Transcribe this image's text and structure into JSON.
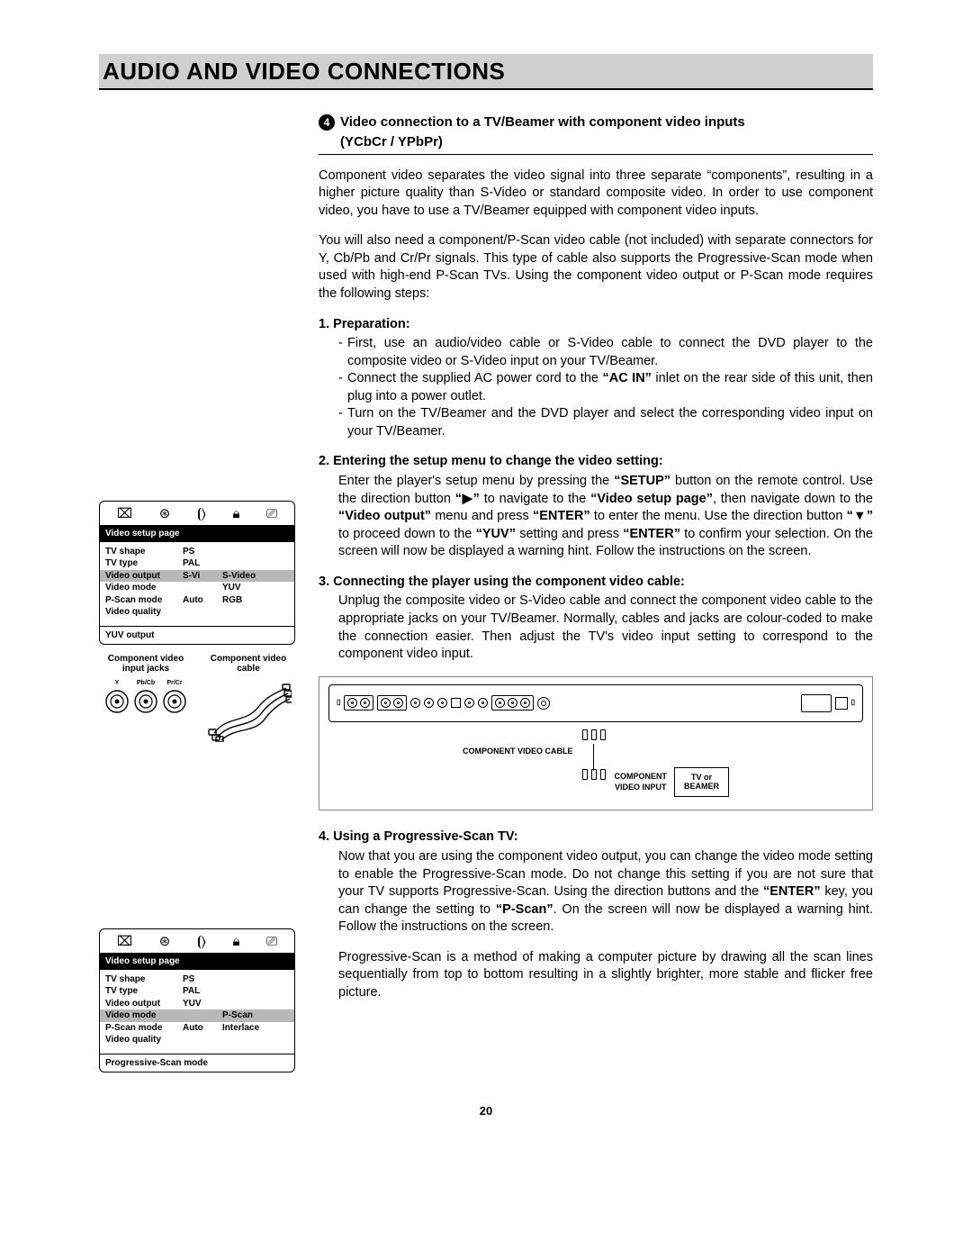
{
  "page_number": "20",
  "title": "AUDIO AND VIDEO CONNECTIONS",
  "section": {
    "number": "4",
    "heading_line1": "Video connection to a TV/Beamer with component video inputs",
    "heading_line2": "(YCbCr / YPbPr)"
  },
  "para1": "Component video separates the video signal into three separate “components”, resulting in a higher picture quality than S-Video or standard composite video. In order to use component video, you have to use a TV/Beamer equipped with component video inputs.",
  "para2": "You will also need a component/P-Scan video cable (not included) with separate connectors for Y, Cb/Pb and Cr/Pr signals. This type of cable also supports the Progressive-Scan mode when used with high-end P-Scan TVs. Using the component video output or P-Scan mode requires the following steps:",
  "step1": {
    "head": "1.  Preparation:",
    "a": "First, use an audio/video cable or S-Video cable to connect the DVD player to the composite video or S-Video input on your TV/Beamer.",
    "b_pre": "Connect the supplied AC power cord to the ",
    "b_bold": "“AC IN”",
    "b_post": " inlet on the rear side of this unit, then plug into a power outlet.",
    "c": "Turn on the TV/Beamer and the DVD player and select the corresponding video input on your TV/Beamer."
  },
  "step2": {
    "head": "2.  Entering the setup menu to change the video setting:",
    "t1": "Enter the player's setup menu by pressing the ",
    "b1": "“SETUP”",
    "t2": " button on the remote control. Use the direction button ",
    "b2": "“▶”",
    "t3": " to navigate to the ",
    "b3": "“Video setup page”",
    "t4": ", then navigate down to the ",
    "b4": "“Video output”",
    "t5": " menu and press ",
    "b5": "“ENTER”",
    "t6": " to enter the menu. Use the direction button ",
    "b6": "“▼”",
    "t7": " to proceed down to the ",
    "b7": "“YUV”",
    "t8": " setting and press ",
    "b8": "“ENTER”",
    "t9": " to confirm your selection. On the screen will now be displayed a warning hint. Follow the instructions on the screen."
  },
  "step3": {
    "head": "3.  Connecting the player using the component video cable:",
    "body": "Unplug the composite video or S-Video cable and connect the component video cable to the appropriate jacks on your TV/Beamer. Normally, cables and jacks are colour-coded to make the connection easier. Then adjust the TV's video input setting to correspond to the component video input."
  },
  "step4": {
    "head": "4.  Using a Progressive-Scan TV:",
    "t1": "Now that you are using the component video output, you can change the video mode setting to enable the Progressive-Scan mode. Do not change this setting if you are not sure that your TV supports Progressive-Scan. Using the direction buttons and the ",
    "b1": "“ENTER”",
    "t2": " key, you can change the setting to ",
    "b2": "“P-Scan”",
    "t3": ". On the screen will now be displayed a warning hint. Follow the instructions on the screen.",
    "p2": "Progressive-Scan is a method of making a computer picture by drawing all the scan lines sequentially from top to bottom resulting in a slightly brighter, more stable and flicker free picture."
  },
  "menu1": {
    "header": "Video setup page",
    "rows": [
      {
        "c1": "TV shape",
        "c2": "PS",
        "c3": "",
        "hl": false
      },
      {
        "c1": "TV type",
        "c2": "PAL",
        "c3": "",
        "hl": false
      },
      {
        "c1": "Video output",
        "c2": "S-Vi",
        "c3": "S-Video",
        "hl": true
      },
      {
        "c1": "Video mode",
        "c2": "",
        "c3": "YUV",
        "hl": false
      },
      {
        "c1": "P-Scan mode",
        "c2": "Auto",
        "c3": "RGB",
        "hl": false
      },
      {
        "c1": "Video quality",
        "c2": "",
        "c3": "",
        "hl": false
      }
    ],
    "footer": "YUV output"
  },
  "menu2": {
    "header": "Video setup page",
    "rows": [
      {
        "c1": "TV shape",
        "c2": "PS",
        "c3": "",
        "hl": false
      },
      {
        "c1": "TV type",
        "c2": "PAL",
        "c3": "",
        "hl": false
      },
      {
        "c1": "Video output",
        "c2": "YUV",
        "c3": "",
        "hl": false
      },
      {
        "c1": "Video mode",
        "c2": "",
        "c3": "P-Scan",
        "hl": true
      },
      {
        "c1": "P-Scan mode",
        "c2": "Auto",
        "c3": "Interlace",
        "hl": false
      },
      {
        "c1": "Video quality",
        "c2": "",
        "c3": "",
        "hl": false
      }
    ],
    "footer": "Progressive-Scan mode"
  },
  "jack_section": {
    "left_label": "Component video input jacks",
    "right_label": "Component video cable",
    "jacks": [
      "Y",
      "Pb/Cb",
      "Pr/Cr"
    ]
  },
  "diagram": {
    "cable_label": "COMPONENT VIDEO CABLE",
    "tv_label_l1": "TV or",
    "tv_label_l2": "BEAMER",
    "input_label_l1": "COMPONENT",
    "input_label_l2": "VIDEO INPUT"
  }
}
